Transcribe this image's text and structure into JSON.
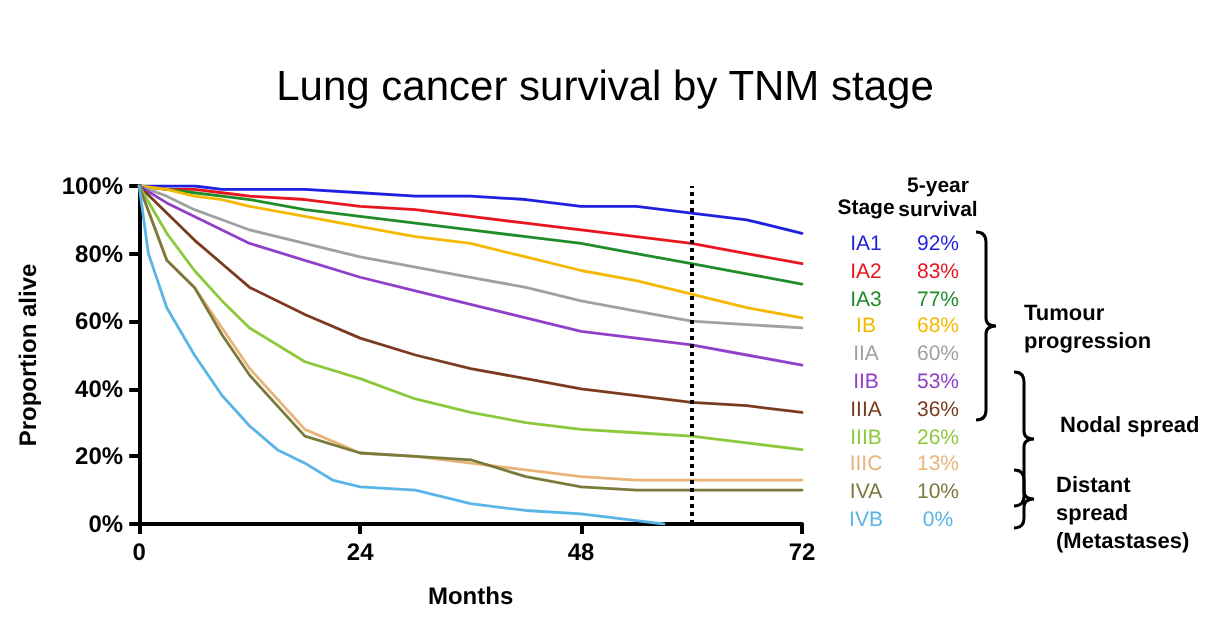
{
  "chart_data": {
    "type": "line",
    "title": "Lung cancer survival by TNM stage",
    "xlabel": "Months",
    "ylabel": "Proportion alive",
    "legend_title": "Stage",
    "legend": "right",
    "marker": "none",
    "grid": false,
    "x": [
      0,
      3,
      6,
      9,
      12,
      18,
      24,
      30,
      36,
      42,
      48,
      54,
      60,
      66,
      72
    ],
    "xlim": [
      0,
      72
    ],
    "xticks": [
      0,
      24,
      48,
      72
    ],
    "ylim": [
      0,
      100
    ],
    "yticks": [
      {
        "value": 0,
        "label": "0%"
      },
      {
        "value": 20,
        "label": "20%"
      },
      {
        "value": 40,
        "label": "40%"
      },
      {
        "value": 60,
        "label": "60%"
      },
      {
        "value": 80,
        "label": "80%"
      },
      {
        "value": 100,
        "label": "100%"
      }
    ],
    "ref_lines": [
      {
        "axis": "x",
        "value": 60,
        "label": null,
        "color": "#000000",
        "line_style": "dotted"
      }
    ],
    "series": [
      {
        "name": "IA1",
        "color": "#1f1fe0",
        "values": [
          100,
          100,
          100,
          99,
          99,
          99,
          98,
          97,
          97,
          96,
          94,
          94,
          92,
          90,
          86
        ]
      },
      {
        "name": "IA2",
        "color": "#e8141e",
        "values": [
          100,
          99,
          99,
          98,
          97,
          96,
          94,
          93,
          91,
          89,
          87,
          85,
          83,
          80,
          77
        ]
      },
      {
        "name": "IA3",
        "color": "#1e8c28",
        "values": [
          100,
          99,
          98,
          97,
          96,
          93,
          91,
          89,
          87,
          85,
          83,
          80,
          77,
          74,
          71
        ]
      },
      {
        "name": "IB",
        "color": "#f5b800",
        "values": [
          100,
          99,
          97,
          96,
          94,
          91,
          88,
          85,
          83,
          79,
          75,
          72,
          68,
          64,
          61
        ]
      },
      {
        "name": "IIA",
        "color": "#a0a0a0",
        "values": [
          100,
          97,
          93,
          90,
          87,
          83,
          79,
          76,
          73,
          70,
          66,
          63,
          60,
          59,
          58
        ]
      },
      {
        "name": "IIB",
        "color": "#9040c8",
        "values": [
          100,
          95,
          91,
          87,
          83,
          78,
          73,
          69,
          65,
          61,
          57,
          55,
          53,
          50,
          47
        ]
      },
      {
        "name": "IIIA",
        "color": "#7a3a1e",
        "values": [
          100,
          92,
          84,
          77,
          70,
          62,
          55,
          50,
          46,
          43,
          40,
          38,
          36,
          35,
          33
        ]
      },
      {
        "name": "IIIB",
        "color": "#8cc83c",
        "values": [
          100,
          86,
          75,
          66,
          58,
          48,
          43,
          37,
          33,
          30,
          28,
          27,
          26,
          24,
          22
        ]
      },
      {
        "name": "IIIC",
        "color": "#e8b478",
        "values": [
          100,
          78,
          70,
          58,
          46,
          28,
          21,
          20,
          18,
          16,
          14,
          13,
          13,
          13,
          13
        ]
      },
      {
        "name": "IVA",
        "color": "#7a7a3c",
        "values": [
          100,
          78,
          70,
          56,
          44,
          26,
          21,
          20,
          19,
          14,
          11,
          10,
          10,
          10,
          10
        ]
      },
      {
        "name": "IVB",
        "color": "#5ab4e6",
        "x": [
          0,
          1,
          3,
          6,
          9,
          12,
          15,
          18,
          21,
          24,
          30,
          36,
          42,
          48,
          54,
          57
        ],
        "values": [
          100,
          80,
          64,
          50,
          38,
          29,
          22,
          18,
          13,
          11,
          10,
          6,
          4,
          3,
          1,
          0
        ]
      }
    ],
    "annotations": [
      "5-year survival",
      "92%",
      "83%",
      "77%",
      "68%",
      "60%",
      "53%",
      "36%",
      "26%",
      "13%",
      "10%",
      "0%",
      "Tumour progression",
      "Nodal spread",
      "Distant spread (Metastases)"
    ]
  }
}
